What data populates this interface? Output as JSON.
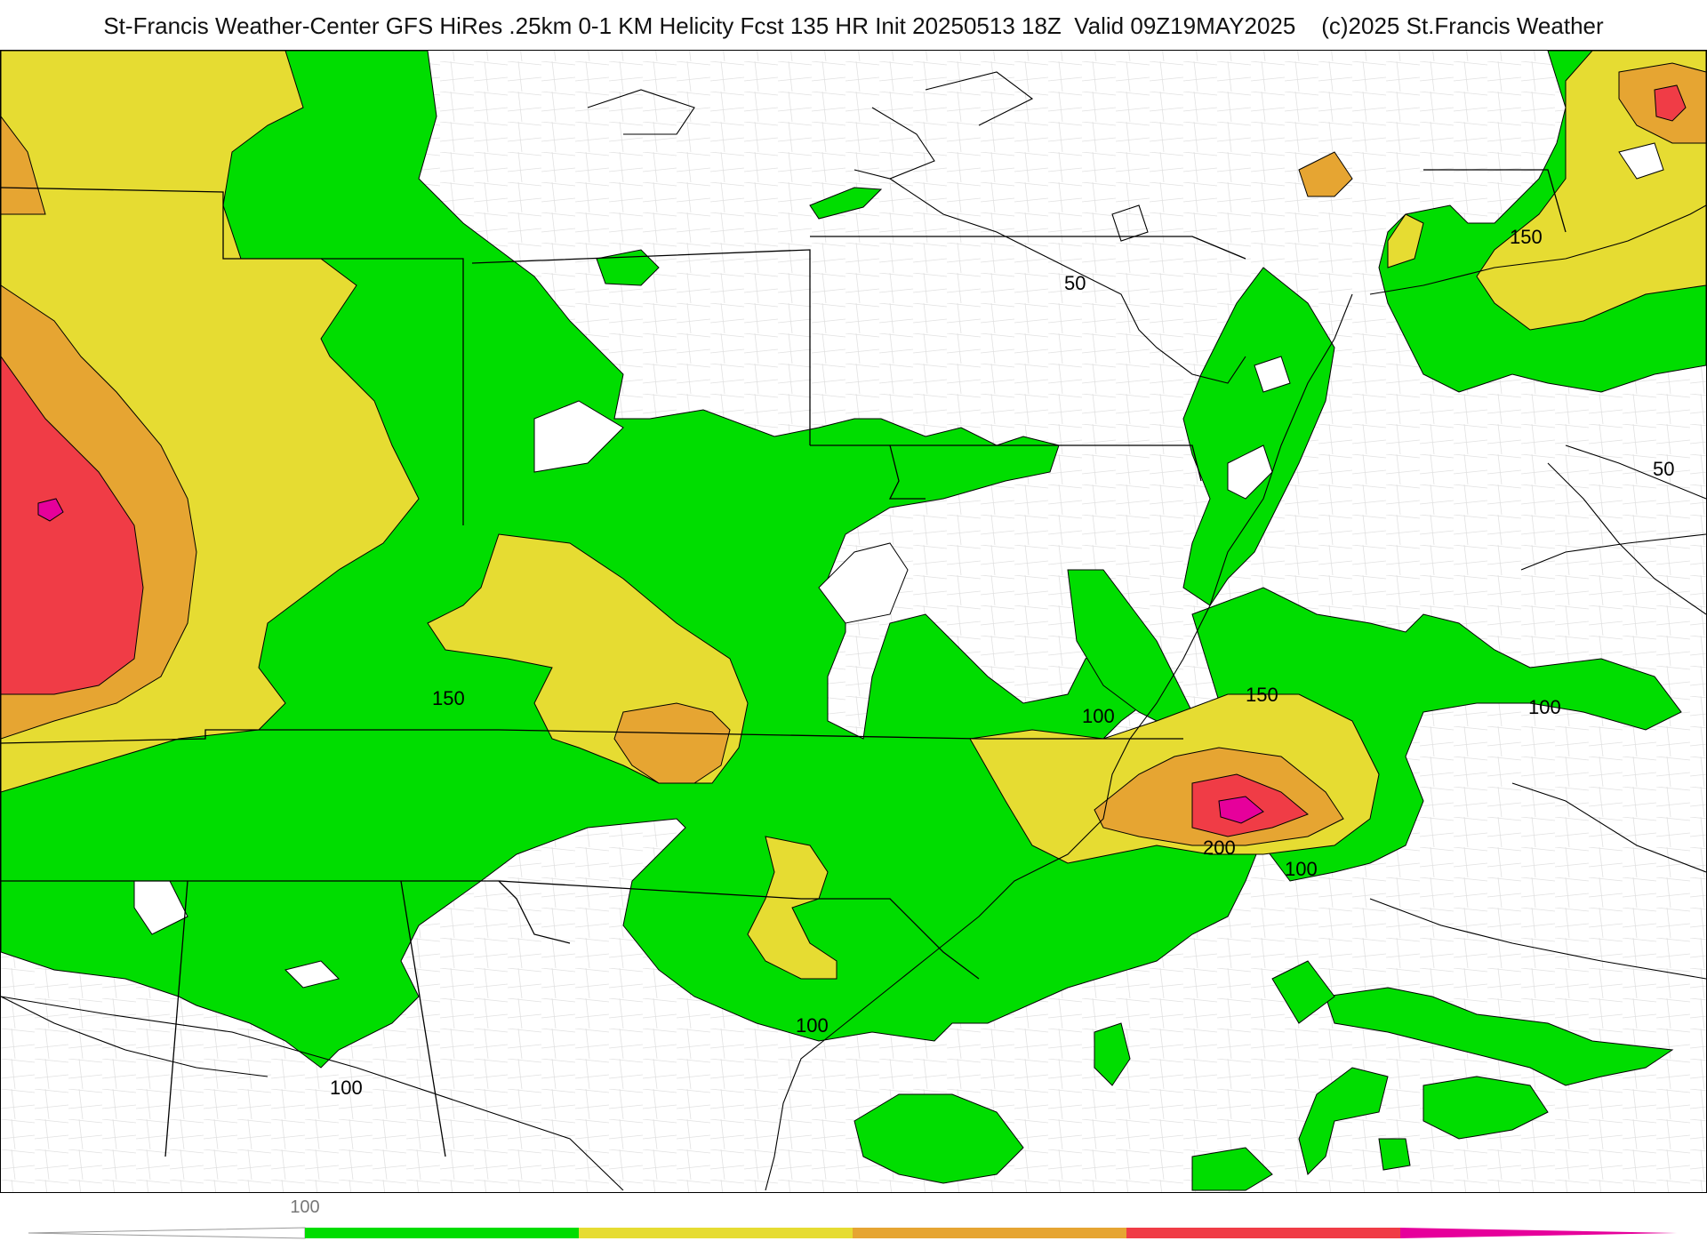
{
  "title": "St-Francis Weather-Center GFS HiRes .25km 0-1 KM Helicity Fcst 135 HR Init 20250513 18Z  Valid 09Z19MAY2025    (c)2025 St.Francis Weather",
  "colors": {
    "bin_0_100": "#ffffff",
    "bin_100_150": "#00dd00",
    "bin_150_200": "#e6dc32",
    "bin_200_250": "#e6a532",
    "bin_250_300": "#f03c46",
    "bin_300_plus": "#e6009b",
    "contour_line": "#000000",
    "state_border": "#000000",
    "county_border": "#bbbbbb"
  },
  "legend": {
    "tick_label": "100",
    "bins": [
      "0-100",
      "100-150",
      "150-200",
      "200-250",
      "250-300",
      "300+"
    ]
  },
  "contour_labels": [
    {
      "id": "c50-ne",
      "text": "50"
    },
    {
      "id": "c50-e",
      "text": "50"
    },
    {
      "id": "c150-ne",
      "text": "150"
    },
    {
      "id": "c150-tn",
      "text": "150"
    },
    {
      "id": "c150-nc",
      "text": "150"
    },
    {
      "id": "c100-va",
      "text": "100"
    },
    {
      "id": "c100-atl",
      "text": "100"
    },
    {
      "id": "c200-nc",
      "text": "200"
    },
    {
      "id": "c100-nc",
      "text": "100"
    },
    {
      "id": "c100-sc",
      "text": "100"
    },
    {
      "id": "c100-al",
      "text": "100"
    }
  ]
}
